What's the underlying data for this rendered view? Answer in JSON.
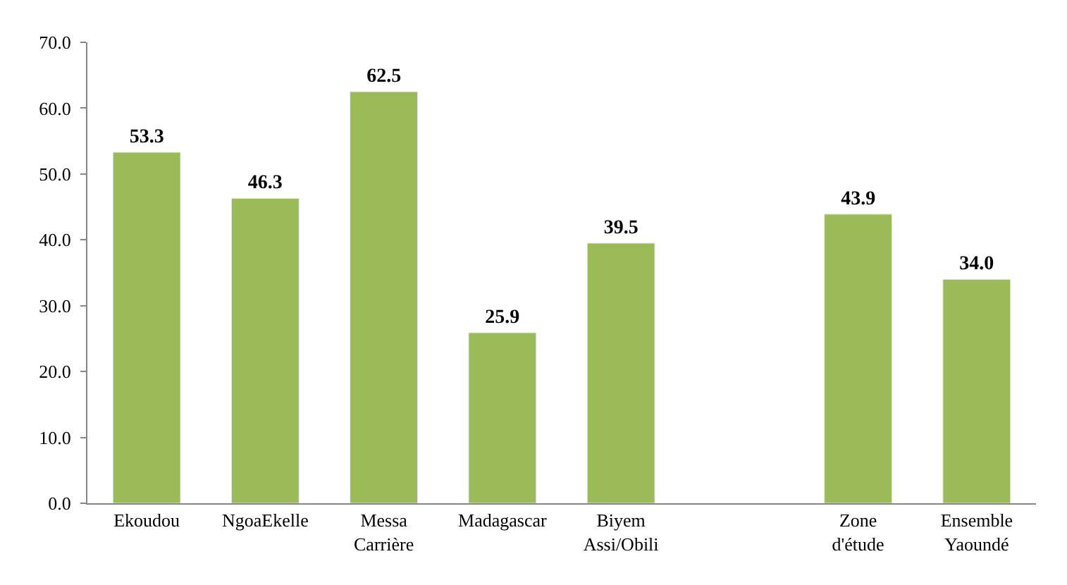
{
  "chart_data": {
    "type": "bar",
    "categories": [
      "Ekoudou",
      "NgoaEkelle",
      "Messa Carrière",
      "Madagascar",
      "Biyem Assi/Obili",
      null,
      "Zone d'étude",
      "Ensemble Yaoundé"
    ],
    "values": [
      53.3,
      46.3,
      62.5,
      25.9,
      39.5,
      null,
      43.9,
      34.0
    ],
    "color": "#9bbb59",
    "ylim": [
      0,
      70
    ],
    "yticks": [
      {
        "value": 0,
        "label": "0.0"
      },
      {
        "value": 10,
        "label": "10.0"
      },
      {
        "value": 20,
        "label": "20.0"
      },
      {
        "value": 30,
        "label": "30.0"
      },
      {
        "value": 40,
        "label": "40.0"
      },
      {
        "value": 50,
        "label": "50.0"
      },
      {
        "value": 60,
        "label": "60.0"
      },
      {
        "value": 70,
        "label": "70.0"
      }
    ],
    "value_labels": [
      "53.3",
      "46.3",
      "62.5",
      "25.9",
      "39.5",
      null,
      "43.9",
      "34.0"
    ]
  }
}
